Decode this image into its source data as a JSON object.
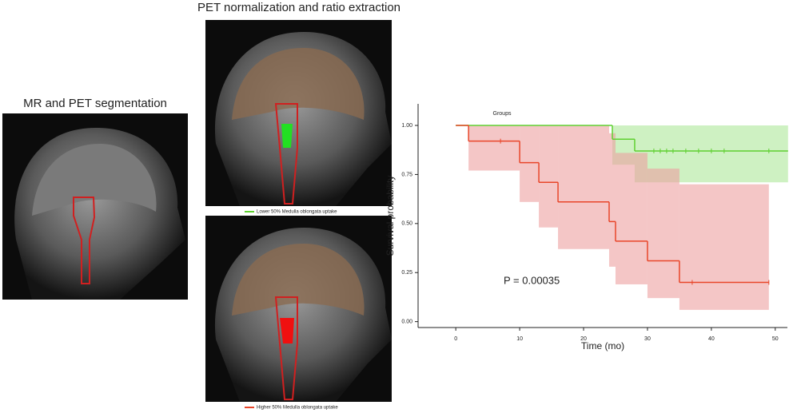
{
  "panels": {
    "segmentation_title": "MR and PET segmentation",
    "normalization_title": "PET normalization and ratio extraction"
  },
  "chart_data": {
    "type": "step",
    "legend_title": "Groups",
    "annotation": "P = 0.00035",
    "x_label": "Time (mo)",
    "y_label": "Survival probability",
    "xlim": [
      -5.9,
      51.9
    ],
    "ylim": [
      -0.03,
      1.11
    ],
    "xticks": [
      0,
      10,
      20,
      30,
      40,
      50
    ],
    "yticks": [
      {
        "value": 0,
        "label": "0.00"
      },
      {
        "value": 0.25,
        "label": "0.25"
      },
      {
        "value": 0.5,
        "label": "0.50"
      },
      {
        "value": 0.75,
        "label": "0.75"
      },
      {
        "value": 1,
        "label": "1.00"
      }
    ],
    "series": [
      {
        "name": "Lower 50% Medulla oblongata uptake",
        "color": "#5fd030",
        "band_color": "#aee89a",
        "x": [
          0,
          24.5,
          28,
          52
        ],
        "values": [
          1,
          0.93,
          0.87,
          0.87
        ],
        "lower": [
          1,
          0.8,
          0.71,
          0.71
        ],
        "upper": [
          1,
          1,
          1,
          1
        ],
        "censored_x": [
          31,
          32,
          33,
          34,
          36,
          38,
          40,
          42,
          49
        ]
      },
      {
        "name": "Higher 50% Medulla oblongata uptake",
        "color": "#e8462a",
        "band_color": "#eda0a0",
        "x": [
          0,
          2,
          10,
          13,
          16,
          24,
          25,
          30,
          35,
          49
        ],
        "values": [
          1,
          0.92,
          0.81,
          0.71,
          0.61,
          0.51,
          0.41,
          0.31,
          0.2,
          0.2
        ],
        "lower": [
          1,
          0.77,
          0.61,
          0.48,
          0.37,
          0.28,
          0.19,
          0.12,
          0.06,
          0.06
        ],
        "upper": [
          1,
          1,
          1,
          1,
          1,
          0.96,
          0.86,
          0.78,
          0.7,
          0.7
        ],
        "censored_x": [
          7,
          37,
          49
        ]
      }
    ]
  }
}
